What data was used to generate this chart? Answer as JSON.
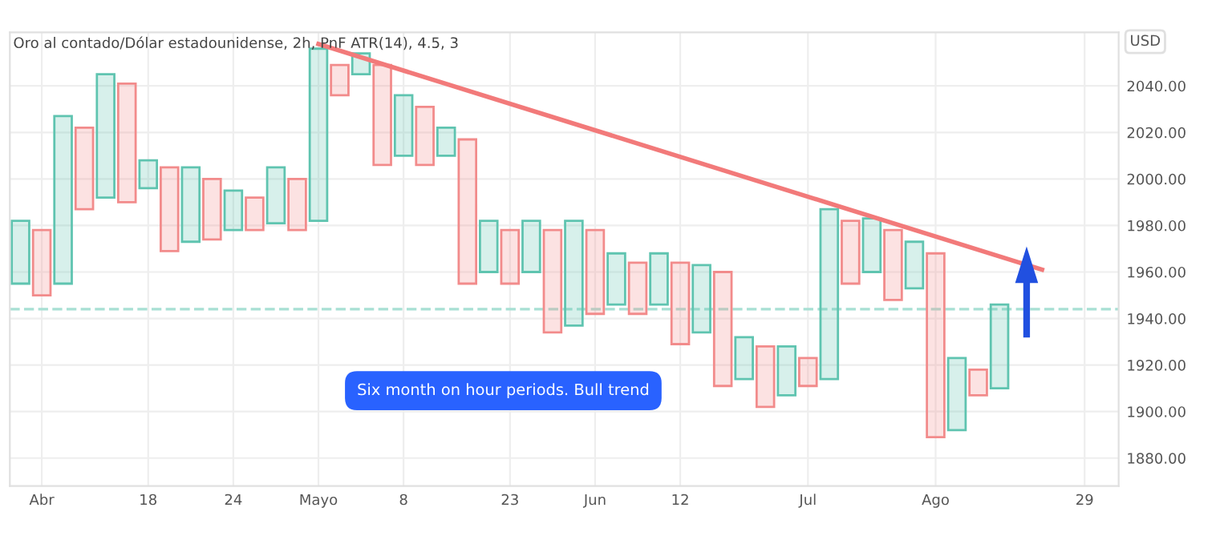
{
  "chart_data": {
    "type": "bar",
    "title": "Oro al contado/Dólar estadounidense, 2h, PnF ATR(14), 4.5, 3",
    "ylabel": "USD",
    "annotations": [
      "Six month on hour periods. Bull trend"
    ],
    "categories": [
      null,
      "Abr",
      null,
      null,
      null,
      null,
      "18",
      null,
      null,
      null,
      "24",
      null,
      null,
      null,
      "Mayo",
      null,
      null,
      null,
      "8",
      null,
      null,
      null,
      null,
      "23",
      null,
      null,
      null,
      "Jun",
      null,
      null,
      null,
      "12",
      null,
      null,
      null,
      null,
      null,
      "Jul",
      null,
      null,
      null,
      null,
      null,
      "Ago",
      null,
      null,
      null,
      null,
      null,
      null,
      "29",
      null
    ],
    "base": [
      1955,
      1950,
      1955,
      1987,
      1992,
      1990,
      1996,
      1969,
      1973,
      1974,
      1978,
      1978,
      1981,
      1978,
      1982,
      2036,
      2045,
      2006,
      2010,
      2006,
      2010,
      1955,
      1960,
      1955,
      1960,
      1934,
      1937,
      1942,
      1946,
      1942,
      1946,
      1929,
      1934,
      1911,
      1914,
      1902,
      1907,
      1911,
      1914,
      1955,
      1960,
      1948,
      1953,
      1889,
      1892,
      1907,
      1910,
      null,
      null,
      null,
      null,
      null
    ],
    "values": [
      27,
      28,
      72,
      35,
      53,
      51,
      12,
      36,
      32,
      26,
      17,
      14,
      24,
      22,
      74,
      13,
      9,
      43,
      26,
      25,
      12,
      62,
      22,
      23,
      22,
      44,
      45,
      36,
      22,
      22,
      22,
      35,
      29,
      49,
      18,
      26,
      21,
      12,
      73,
      27,
      23,
      30,
      20,
      79,
      31,
      11,
      36,
      null,
      null,
      null,
      null,
      null
    ],
    "colors": [
      "#5fc4b0",
      "#f28b8b",
      "#5fc4b0",
      "#f28b8b",
      "#5fc4b0",
      "#f28b8b",
      "#5fc4b0",
      "#f28b8b",
      "#5fc4b0",
      "#f28b8b",
      "#5fc4b0",
      "#f28b8b",
      "#5fc4b0",
      "#f28b8b",
      "#5fc4b0",
      "#f28b8b",
      "#5fc4b0",
      "#f28b8b",
      "#5fc4b0",
      "#f28b8b",
      "#5fc4b0",
      "#f28b8b",
      "#5fc4b0",
      "#f28b8b",
      "#5fc4b0",
      "#f28b8b",
      "#5fc4b0",
      "#f28b8b",
      "#5fc4b0",
      "#f28b8b",
      "#5fc4b0",
      "#f28b8b",
      "#5fc4b0",
      "#f28b8b",
      "#5fc4b0",
      "#f28b8b",
      "#5fc4b0",
      "#f28b8b",
      "#5fc4b0",
      "#f28b8b",
      "#5fc4b0",
      "#f28b8b",
      "#5fc4b0",
      "#f28b8b",
      "#5fc4b0",
      "#f28b8b",
      "#5fc4b0",
      null,
      null,
      null,
      null,
      null
    ],
    "series": [
      {
        "type": "line",
        "color": "#f27a7a",
        "values": [
          null,
          null,
          null,
          null,
          null,
          null,
          null,
          null,
          null,
          null,
          null,
          null,
          null,
          null,
          2058,
          null,
          null,
          null,
          null,
          null,
          null,
          null,
          null,
          null,
          null,
          null,
          null,
          null,
          null,
          null,
          null,
          null,
          null,
          null,
          null,
          null,
          null,
          null,
          null,
          null,
          null,
          null,
          null,
          null,
          null,
          null,
          null,
          null,
          1961,
          null,
          null,
          null
        ]
      }
    ],
    "ref_lines": [
      {
        "axis": "y",
        "value": 1944,
        "color": "#a8e0d4",
        "line_style": "dashed"
      }
    ],
    "ylim": [
      1868,
      2063
    ],
    "yticks": [
      {
        "value": 1880,
        "label": "1880.00"
      },
      {
        "value": 1900,
        "label": "1900.00"
      },
      {
        "value": 1920,
        "label": "1920.00"
      },
      {
        "value": 1940,
        "label": "1940.00"
      },
      {
        "value": 1960,
        "label": "1960.00"
      },
      {
        "value": 1980,
        "label": "1980.00"
      },
      {
        "value": 2000,
        "label": "2000.00"
      },
      {
        "value": 2020,
        "label": "2020.00"
      },
      {
        "value": 2040,
        "label": "2040.00"
      }
    ],
    "grid": true
  }
}
